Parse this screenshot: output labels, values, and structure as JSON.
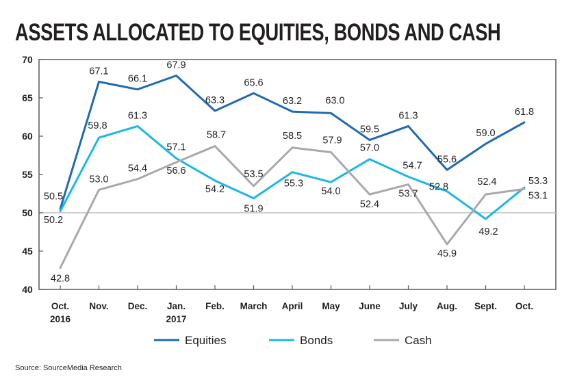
{
  "chart_data": {
    "type": "line",
    "title": "ASSETS ALLOCATED TO EQUITIES, BONDS AND CASH",
    "xlabel": "",
    "ylabel": "",
    "ylim": [
      40,
      70
    ],
    "yticks": [
      40,
      45,
      50,
      55,
      60,
      65,
      70
    ],
    "categories": [
      [
        "Oct.",
        "2016"
      ],
      [
        "Nov."
      ],
      [
        "Dec."
      ],
      [
        "Jan.",
        "2017"
      ],
      [
        "Feb."
      ],
      [
        "March"
      ],
      [
        "April"
      ],
      [
        "May"
      ],
      [
        "June"
      ],
      [
        "July"
      ],
      [
        "Aug."
      ],
      [
        "Sept."
      ],
      [
        "Oct."
      ]
    ],
    "series": [
      {
        "name": "Equities",
        "color": "#1f6ab2",
        "values": [
          50.5,
          67.1,
          66.1,
          67.9,
          63.3,
          65.6,
          63.2,
          63.0,
          59.5,
          61.3,
          55.6,
          59.0,
          61.8
        ],
        "labels": [
          "50.5",
          "67.1",
          "66.1",
          "67.9",
          "63.3",
          "65.6",
          "63.2",
          "63.0",
          "59.5",
          "61.3",
          "55.6",
          "59.0",
          "61.8"
        ]
      },
      {
        "name": "Bonds",
        "color": "#1ab7ea",
        "values": [
          50.2,
          59.8,
          61.3,
          57.1,
          54.2,
          51.9,
          55.3,
          54.0,
          57.0,
          54.7,
          52.8,
          49.2,
          53.3
        ],
        "labels": [
          "50.2",
          "59.8",
          "61.3",
          "57.1",
          "54.2",
          "51.9",
          "55.3",
          "54.0",
          "57.0",
          "54.7",
          "52.8",
          "49.2",
          "53.3"
        ]
      },
      {
        "name": "Cash",
        "color": "#a8a9ad",
        "values": [
          42.8,
          53.0,
          54.4,
          56.6,
          58.7,
          53.5,
          58.5,
          57.9,
          52.4,
          53.7,
          45.9,
          52.4,
          53.1
        ],
        "labels": [
          "42.8",
          "53.0",
          "54.4",
          "56.6",
          "58.7",
          "53.5",
          "58.5",
          "57.9",
          "52.4",
          "53.7",
          "45.9",
          "52.4",
          "53.1"
        ]
      }
    ],
    "legend": "bottom-center",
    "grid": false,
    "reference_line": 50,
    "source": "Source: SourceMedia Research"
  }
}
